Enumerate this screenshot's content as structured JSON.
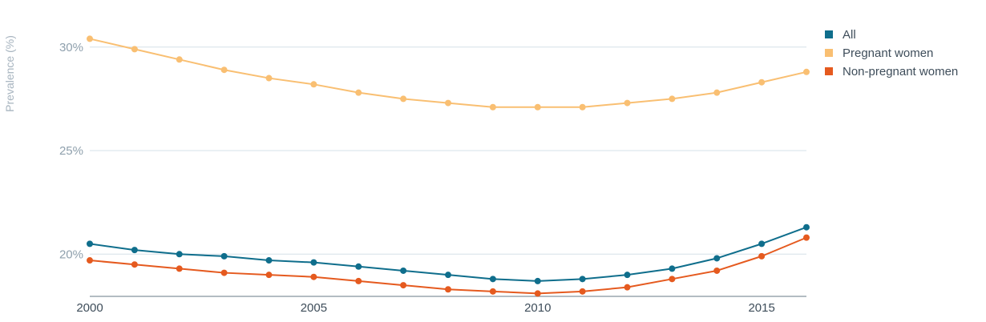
{
  "chart_data": {
    "type": "line",
    "title": "",
    "xlabel": "",
    "ylabel": "Prevalence (%)",
    "x": [
      2000,
      2001,
      2002,
      2003,
      2004,
      2005,
      2006,
      2007,
      2008,
      2009,
      2010,
      2011,
      2012,
      2013,
      2014,
      2015,
      2016
    ],
    "xticks": [
      2000,
      2005,
      2010,
      2015
    ],
    "xtick_labels": [
      "2000",
      "2005",
      "2010",
      "2015"
    ],
    "yticks": [
      20,
      25,
      30
    ],
    "ytick_labels": [
      "20%",
      "25%",
      "30%"
    ],
    "ylim": [
      18,
      31.5
    ],
    "xlim": [
      2000,
      2016
    ],
    "grid": true,
    "legend_position": "top-right",
    "series": [
      {
        "name": "All",
        "color": "#0f6e8c",
        "values": [
          20.5,
          20.2,
          20.0,
          19.9,
          19.7,
          19.6,
          19.4,
          19.2,
          19.0,
          18.8,
          18.7,
          18.8,
          19.0,
          19.3,
          19.8,
          20.5,
          21.3
        ]
      },
      {
        "name": "Pregnant women",
        "color": "#f9bf72",
        "values": [
          30.4,
          29.9,
          29.4,
          28.9,
          28.5,
          28.2,
          27.8,
          27.5,
          27.3,
          27.1,
          27.1,
          27.1,
          27.3,
          27.5,
          27.8,
          28.3,
          28.8
        ]
      },
      {
        "name": "Non-pregnant women",
        "color": "#e55a1f",
        "values": [
          19.7,
          19.5,
          19.3,
          19.1,
          19.0,
          18.9,
          18.7,
          18.5,
          18.3,
          18.2,
          18.1,
          18.2,
          18.4,
          18.8,
          19.2,
          19.9,
          20.8
        ]
      }
    ]
  }
}
